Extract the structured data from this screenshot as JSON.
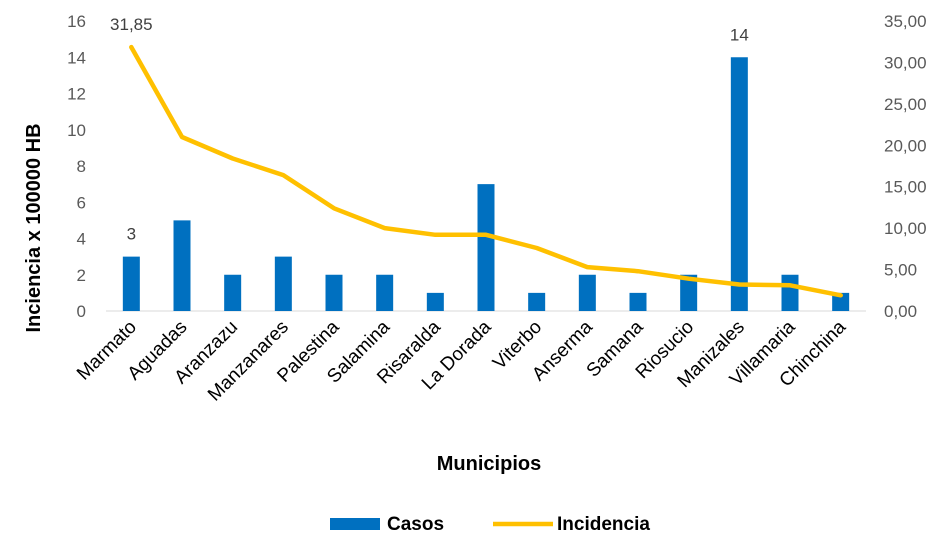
{
  "chart_data": {
    "type": "bar+line",
    "categories": [
      "Marmato",
      "Aguadas",
      "Aranzazu",
      "Manzanares",
      "Palestina",
      "Salamina",
      "Risaralda",
      "La Dorada",
      "Viterbo",
      "Anserma",
      "Samana",
      "Riosucio",
      "Manizales",
      "Villamaria",
      "Chinchina"
    ],
    "series": [
      {
        "name": "Casos",
        "type": "bar",
        "axis": "left",
        "color": "#0070C0",
        "values": [
          3,
          5,
          2,
          3,
          2,
          2,
          1,
          7,
          1,
          2,
          1,
          2,
          14,
          2,
          1
        ]
      },
      {
        "name": "Incidencia",
        "type": "line",
        "axis": "right",
        "color": "#FFC000",
        "values": [
          31.85,
          21.0,
          18.4,
          16.4,
          12.4,
          10.0,
          9.2,
          9.2,
          7.6,
          5.3,
          4.8,
          3.9,
          3.2,
          3.1,
          1.9
        ]
      }
    ],
    "data_labels": [
      {
        "series": "Casos",
        "category": "Marmato",
        "text": "3"
      },
      {
        "series": "Incidencia",
        "category": "Marmato",
        "text": "31,85"
      },
      {
        "series": "Casos",
        "category": "Manizales",
        "text": "14"
      }
    ],
    "ylim_left": [
      0,
      16
    ],
    "yticks_left": [
      "0",
      "2",
      "4",
      "6",
      "8",
      "10",
      "12",
      "14",
      "16"
    ],
    "ylim_right": [
      0,
      35
    ],
    "yticks_right": [
      "0,00",
      "5,00",
      "10,00",
      "15,00",
      "20,00",
      "25,00",
      "30,00",
      "35,00"
    ],
    "xlabel": "Municipios",
    "ylabel": "Inciencia x  100000 HB",
    "grid": false,
    "legend_position": "bottom"
  }
}
